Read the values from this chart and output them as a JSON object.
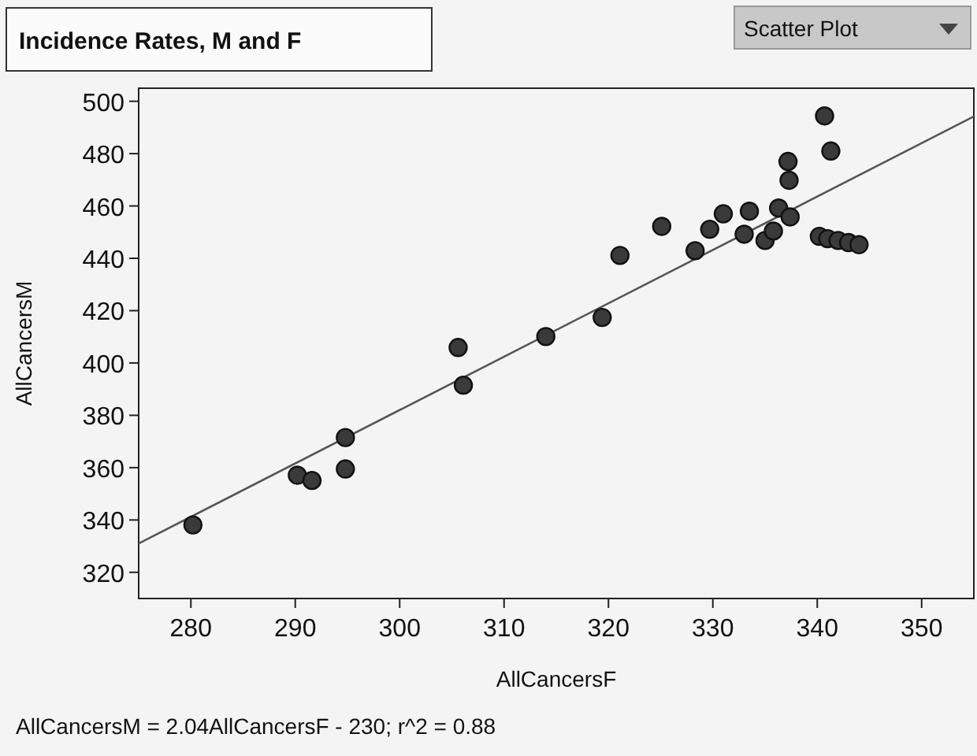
{
  "chart_data": {
    "type": "scatter",
    "title": "Incidence Rates, M and F",
    "xlabel": "AllCancersF",
    "ylabel": "AllCancersM",
    "xlim": [
      275,
      355
    ],
    "ylim": [
      310,
      505
    ],
    "xticks": [
      280,
      290,
      300,
      310,
      320,
      330,
      340,
      350
    ],
    "yticks": [
      320,
      340,
      360,
      380,
      400,
      420,
      440,
      460,
      480,
      500
    ],
    "grid": false,
    "annotations": [
      "AllCancersM = 2.04AllCancersF - 230; r^2 = 0.88",
      "Scatter Plot"
    ],
    "series": [
      {
        "marker": "circle",
        "color": "#3a3a3a",
        "x": [
          280.2,
          290.2,
          291.6,
          294.8,
          294.8,
          305.6,
          306.1,
          314.0,
          319.4,
          321.1,
          325.1,
          328.3,
          329.7,
          331.0,
          333.0,
          333.5,
          335.0,
          335.8,
          336.3,
          337.4,
          337.2,
          337.3,
          340.7,
          341.3,
          340.2,
          341.0,
          342.0,
          343.0,
          344.0
        ],
        "values": [
          338.1,
          357.1,
          355.1,
          371.5,
          359.5,
          405.9,
          391.5,
          410.1,
          417.4,
          441.1,
          452.2,
          442.9,
          451.1,
          457.0,
          449.2,
          458.0,
          446.8,
          450.4,
          459.2,
          455.8,
          477.0,
          469.8,
          494.4,
          481.0,
          448.4,
          447.5,
          446.8,
          446.0,
          445.2
        ]
      },
      {
        "type": "line",
        "marker": "none",
        "color": "#555555",
        "x": [
          275,
          355
        ],
        "values": [
          331,
          494.2
        ]
      }
    ]
  }
}
